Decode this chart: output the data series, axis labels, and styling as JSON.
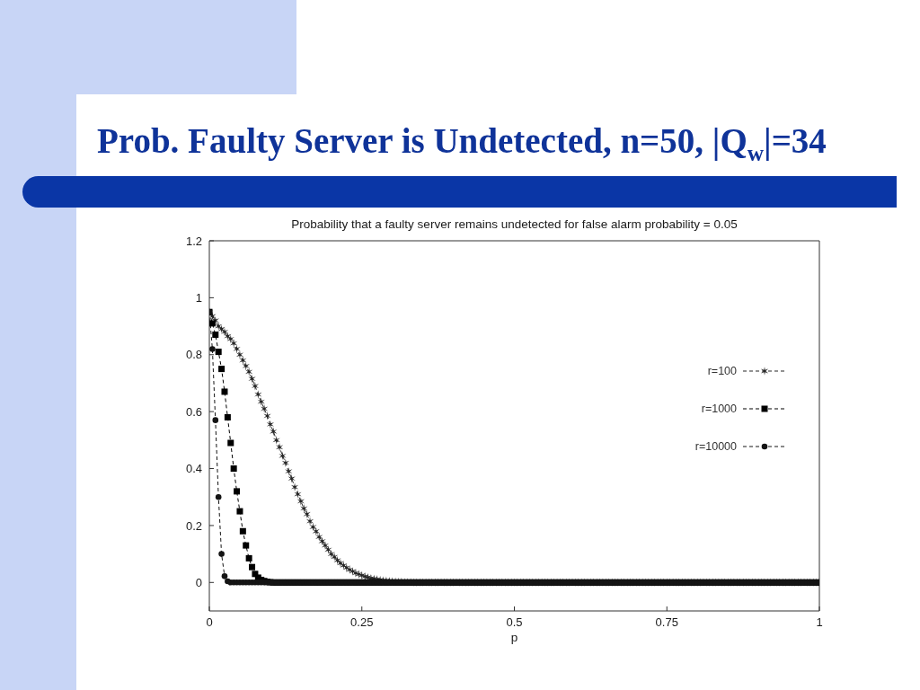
{
  "chart_data": {
    "type": "line",
    "title": "Prob. Faulty Server is Undetected, n=50, |Q$_{w}$|=34",
    "subtitle": "Probability that a faulty server remains undetected for false alarm probability = 0.05",
    "xlabel": "p",
    "x": [
      0,
      0.005,
      0.01,
      0.015,
      0.02,
      0.025,
      0.03,
      0.035,
      0.04,
      0.045,
      0.05,
      0.055,
      0.06,
      0.065,
      0.07,
      0.075,
      0.08,
      0.085,
      0.09,
      0.095,
      0.1,
      0.105,
      0.11,
      0.115,
      0.12,
      0.125,
      0.13,
      0.135,
      0.14,
      0.145,
      0.15,
      0.155,
      0.16,
      0.165,
      0.17,
      0.175,
      0.18,
      0.185,
      0.19,
      0.195,
      0.2,
      0.205,
      0.21,
      0.215,
      0.22,
      0.225,
      0.23,
      0.235,
      0.24,
      0.245,
      0.25,
      0.255,
      0.26,
      0.265,
      0.27,
      0.275,
      0.28,
      0.285,
      0.29,
      0.295,
      0.3,
      0.305,
      0.31,
      0.315,
      0.32,
      0.325,
      0.33,
      0.335,
      0.34,
      0.345,
      0.35,
      0.355,
      0.36,
      0.365,
      0.37,
      0.375,
      0.38,
      0.385,
      0.39,
      0.395,
      0.4,
      0.405,
      0.41,
      0.415,
      0.42,
      0.425,
      0.43,
      0.435,
      0.44,
      0.445,
      0.45,
      0.455,
      0.46,
      0.465,
      0.47,
      0.475,
      0.48,
      0.485,
      0.49,
      0.495,
      0.5,
      0.505,
      0.51,
      0.515,
      0.52,
      0.525,
      0.53,
      0.535,
      0.54,
      0.545,
      0.55,
      0.555,
      0.56,
      0.565,
      0.57,
      0.575,
      0.58,
      0.585,
      0.59,
      0.595,
      0.6,
      0.605,
      0.61,
      0.615,
      0.62,
      0.625,
      0.63,
      0.635,
      0.64,
      0.645,
      0.65,
      0.655,
      0.66,
      0.665,
      0.67,
      0.675,
      0.68,
      0.685,
      0.69,
      0.695,
      0.7,
      0.705,
      0.71,
      0.715,
      0.72,
      0.725,
      0.73,
      0.735,
      0.74,
      0.745,
      0.75,
      0.755,
      0.76,
      0.765,
      0.77,
      0.775,
      0.78,
      0.785,
      0.79,
      0.795,
      0.8,
      0.805,
      0.81,
      0.815,
      0.82,
      0.825,
      0.83,
      0.835,
      0.84,
      0.845,
      0.85,
      0.855,
      0.86,
      0.865,
      0.87,
      0.875,
      0.88,
      0.885,
      0.89,
      0.895,
      0.9,
      0.905,
      0.91,
      0.915,
      0.92,
      0.925,
      0.93,
      0.935,
      0.94,
      0.945,
      0.95,
      0.955,
      0.96,
      0.965,
      0.97,
      0.975,
      0.98,
      0.985,
      0.99,
      0.995,
      1
    ],
    "series": [
      {
        "name": "r=100",
        "color": "#262626",
        "marker": "cross",
        "values": [
          0.95,
          0.935,
          0.92,
          0.9,
          0.89,
          0.88,
          0.865,
          0.855,
          0.84,
          0.82,
          0.8,
          0.78,
          0.76,
          0.74,
          0.715,
          0.69,
          0.66,
          0.635,
          0.61,
          0.585,
          0.555,
          0.53,
          0.5,
          0.475,
          0.445,
          0.42,
          0.39,
          0.365,
          0.335,
          0.31,
          0.285,
          0.26,
          0.24,
          0.215,
          0.195,
          0.18,
          0.16,
          0.145,
          0.13,
          0.115,
          0.1,
          0.09,
          0.078,
          0.068,
          0.06,
          0.052,
          0.045,
          0.039,
          0.033,
          0.029,
          0.025,
          0.021,
          0.018,
          0.015,
          0.013,
          0.011,
          0.009,
          0.007,
          0.006,
          0.005,
          0.004,
          0.003,
          0.002,
          0.002,
          0.001,
          0.001,
          0.001,
          0,
          0,
          0,
          0,
          0,
          0,
          0,
          0,
          0,
          0,
          0,
          0,
          0,
          0,
          0,
          0,
          0,
          0,
          0,
          0,
          0,
          0,
          0,
          0,
          0,
          0,
          0,
          0,
          0,
          0,
          0,
          0,
          0,
          0,
          0,
          0,
          0,
          0,
          0,
          0,
          0,
          0,
          0,
          0,
          0,
          0,
          0,
          0,
          0,
          0,
          0,
          0,
          0,
          0,
          0,
          0,
          0,
          0,
          0,
          0,
          0,
          0,
          0,
          0,
          0,
          0,
          0,
          0,
          0,
          0,
          0,
          0,
          0,
          0,
          0,
          0,
          0,
          0,
          0,
          0,
          0,
          0,
          0,
          0,
          0,
          0,
          0,
          0,
          0,
          0,
          0,
          0,
          0,
          0,
          0,
          0,
          0,
          0,
          0,
          0,
          0,
          0,
          0,
          0,
          0,
          0,
          0,
          0,
          0,
          0,
          0,
          0,
          0,
          0,
          0,
          0,
          0,
          0,
          0,
          0,
          0,
          0,
          0,
          0,
          0,
          0,
          0,
          0,
          0,
          0,
          0,
          0,
          0,
          0
        ]
      },
      {
        "name": "r=1000",
        "color": "#000000",
        "marker": "square",
        "values": [
          0.95,
          0.91,
          0.87,
          0.81,
          0.75,
          0.67,
          0.58,
          0.49,
          0.4,
          0.32,
          0.25,
          0.18,
          0.13,
          0.085,
          0.054,
          0.03,
          0.017,
          0.009,
          0.005,
          0.002,
          0.001,
          0,
          0,
          0,
          0,
          0,
          0,
          0,
          0,
          0,
          0,
          0,
          0,
          0,
          0,
          0,
          0,
          0,
          0,
          0,
          0,
          0,
          0,
          0,
          0,
          0,
          0,
          0,
          0,
          0,
          0,
          0,
          0,
          0,
          0,
          0,
          0,
          0,
          0,
          0,
          0,
          0,
          0,
          0,
          0,
          0,
          0,
          0,
          0,
          0,
          0,
          0,
          0,
          0,
          0,
          0,
          0,
          0,
          0,
          0,
          0,
          0,
          0,
          0,
          0,
          0,
          0,
          0,
          0,
          0,
          0,
          0,
          0,
          0,
          0,
          0,
          0,
          0,
          0,
          0,
          0,
          0,
          0,
          0,
          0,
          0,
          0,
          0,
          0,
          0,
          0,
          0,
          0,
          0,
          0,
          0,
          0,
          0,
          0,
          0,
          0,
          0,
          0,
          0,
          0,
          0,
          0,
          0,
          0,
          0,
          0,
          0,
          0,
          0,
          0,
          0,
          0,
          0,
          0,
          0,
          0,
          0,
          0,
          0,
          0,
          0,
          0,
          0,
          0,
          0,
          0,
          0,
          0,
          0,
          0,
          0,
          0,
          0,
          0,
          0,
          0,
          0,
          0,
          0,
          0,
          0,
          0,
          0,
          0,
          0,
          0,
          0,
          0,
          0,
          0,
          0,
          0,
          0,
          0,
          0,
          0,
          0,
          0,
          0,
          0,
          0,
          0,
          0,
          0,
          0,
          0,
          0,
          0,
          0,
          0,
          0,
          0,
          0,
          0,
          0,
          0
        ]
      },
      {
        "name": "r=10000",
        "color": "#141414",
        "marker": "circle",
        "values": [
          0.95,
          0.82,
          0.57,
          0.3,
          0.1,
          0.022,
          0.004,
          0,
          0,
          0,
          0,
          0,
          0,
          0,
          0,
          0,
          0,
          0,
          0,
          0,
          0,
          0,
          0,
          0,
          0,
          0,
          0,
          0,
          0,
          0,
          0,
          0,
          0,
          0,
          0,
          0,
          0,
          0,
          0,
          0,
          0,
          0,
          0,
          0,
          0,
          0,
          0,
          0,
          0,
          0,
          0,
          0,
          0,
          0,
          0,
          0,
          0,
          0,
          0,
          0,
          0,
          0,
          0,
          0,
          0,
          0,
          0,
          0,
          0,
          0,
          0,
          0,
          0,
          0,
          0,
          0,
          0,
          0,
          0,
          0,
          0,
          0,
          0,
          0,
          0,
          0,
          0,
          0,
          0,
          0,
          0,
          0,
          0,
          0,
          0,
          0,
          0,
          0,
          0,
          0,
          0,
          0,
          0,
          0,
          0,
          0,
          0,
          0,
          0,
          0,
          0,
          0,
          0,
          0,
          0,
          0,
          0,
          0,
          0,
          0,
          0,
          0,
          0,
          0,
          0,
          0,
          0,
          0,
          0,
          0,
          0,
          0,
          0,
          0,
          0,
          0,
          0,
          0,
          0,
          0,
          0,
          0,
          0,
          0,
          0,
          0,
          0,
          0,
          0,
          0,
          0,
          0,
          0,
          0,
          0,
          0,
          0,
          0,
          0,
          0,
          0,
          0,
          0,
          0,
          0,
          0,
          0,
          0,
          0,
          0,
          0,
          0,
          0,
          0,
          0,
          0,
          0,
          0,
          0,
          0,
          0,
          0,
          0,
          0,
          0,
          0,
          0,
          0,
          0,
          0,
          0,
          0,
          0,
          0,
          0,
          0,
          0,
          0,
          0,
          0,
          0
        ]
      }
    ],
    "xlim": [
      0,
      1
    ],
    "xticks": [
      0,
      0.25,
      0.5,
      0.75,
      1
    ],
    "ylim": [
      -0.1,
      1.2
    ],
    "yticks": [
      0,
      0.2,
      0.4,
      0.6,
      0.8,
      1,
      1.2
    ],
    "legend": "right",
    "line_style": "dashed"
  }
}
